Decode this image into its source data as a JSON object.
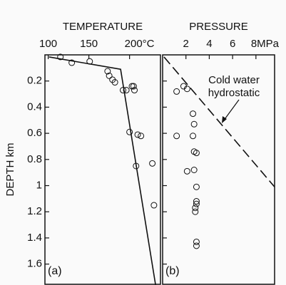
{
  "chart_data": [
    {
      "type": "scatter",
      "title": "TEMPERATURE",
      "ylabel": "DEPTH km",
      "panel_label": "(a)",
      "xlim": [
        96,
        238
      ],
      "xticks": [
        100,
        150,
        {
          "value": 200,
          "label": "200°C"
        }
      ],
      "ylim": [
        0,
        1.76
      ],
      "yticks": [
        0.2,
        0.4,
        0.6,
        0.8,
        1.0,
        1.2,
        1.4,
        1.6
      ],
      "color": "#111111",
      "line": {
        "style": "solid",
        "x": [
          101,
          189,
          232
        ],
        "y": [
          0.016,
          0.11,
          1.76
        ]
      },
      "points": {
        "x": [
          115,
          129,
          151,
          173,
          175,
          179,
          182,
          192,
          196,
          203,
          205,
          206,
          200,
          210,
          214,
          208,
          228,
          230
        ],
        "y": [
          0.016,
          0.06,
          0.05,
          0.125,
          0.16,
          0.19,
          0.21,
          0.27,
          0.27,
          0.24,
          0.24,
          0.27,
          0.59,
          0.61,
          0.62,
          0.85,
          0.83,
          1.15
        ]
      }
    },
    {
      "type": "scatter",
      "title": "PRESSURE",
      "panel_label": "(b)",
      "xlim": [
        0,
        9.6
      ],
      "xticks": [
        2,
        4,
        6,
        {
          "value": 8,
          "label": "8MPa"
        }
      ],
      "ylim": [
        0,
        1.76
      ],
      "color": "#111111",
      "annotation": [
        "Cold water",
        "hydrostatic"
      ],
      "line": {
        "style": "dashed",
        "x": [
          0.12,
          9.6
        ],
        "y": [
          0.016,
          1.01
        ]
      },
      "points": {
        "x": [
          1.2,
          1.8,
          2.1,
          1.2,
          2.6,
          2.7,
          2.6,
          2.7,
          2.9,
          2.1,
          2.7,
          2.9,
          2.9,
          2.9,
          2.8,
          2.8,
          2.9,
          2.9
        ],
        "y": [
          0.28,
          0.24,
          0.26,
          0.62,
          0.45,
          0.53,
          0.62,
          0.74,
          0.75,
          0.89,
          0.88,
          1.01,
          1.12,
          1.14,
          1.17,
          1.2,
          1.43,
          1.46
        ]
      }
    }
  ]
}
